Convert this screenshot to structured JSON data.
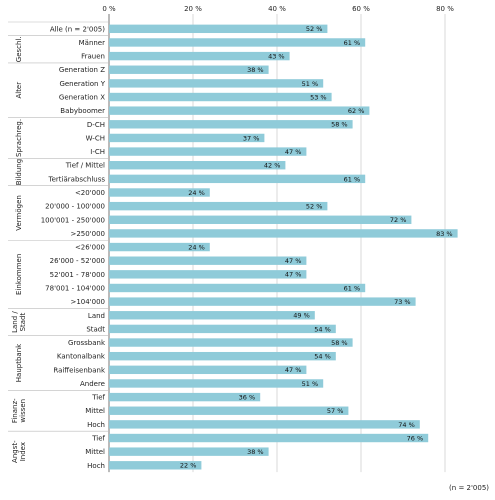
{
  "chart_data": {
    "type": "bar",
    "orientation": "horizontal",
    "xlim": [
      0,
      90
    ],
    "ticks": [
      {
        "value": 0,
        "label": "0 %"
      },
      {
        "value": 20,
        "label": "20 %"
      },
      {
        "value": 40,
        "label": "40 %"
      },
      {
        "value": 60,
        "label": "60 %"
      },
      {
        "value": 80,
        "label": "80 %"
      }
    ],
    "value_suffix": " %",
    "bar_color": "#8fcbd9",
    "grid": true,
    "rows": [
      {
        "label": "Alle  (n = 2'005)",
        "value": 52
      },
      {
        "label": "Männer",
        "value": 61
      },
      {
        "label": "Frauen",
        "value": 43
      },
      {
        "label": "Generation Z",
        "value": 38
      },
      {
        "label": "Generation Y",
        "value": 51
      },
      {
        "label": "Generation X",
        "value": 53
      },
      {
        "label": "Babyboomer",
        "value": 62
      },
      {
        "label": "D-CH",
        "value": 58
      },
      {
        "label": "W-CH",
        "value": 37
      },
      {
        "label": "I-CH",
        "value": 47
      },
      {
        "label": "Tief / Mittel",
        "value": 42
      },
      {
        "label": "Tertiärabschluss",
        "value": 61
      },
      {
        "label": "<20'000",
        "value": 24
      },
      {
        "label": "20'000 - 100'000",
        "value": 52
      },
      {
        "label": "100'001 - 250'000",
        "value": 72
      },
      {
        "label": ">250'000",
        "value": 83
      },
      {
        "label": "<26'000",
        "value": 24
      },
      {
        "label": "26'000 - 52'000",
        "value": 47
      },
      {
        "label": "52'001 - 78'000",
        "value": 47
      },
      {
        "label": "78'001 - 104'000",
        "value": 61
      },
      {
        "label": ">104'000",
        "value": 73
      },
      {
        "label": "Land",
        "value": 49
      },
      {
        "label": "Stadt",
        "value": 54
      },
      {
        "label": "Grossbank",
        "value": 58
      },
      {
        "label": "Kantonalbank",
        "value": 54
      },
      {
        "label": "Raiffeisenbank",
        "value": 47
      },
      {
        "label": "Andere",
        "value": 51
      },
      {
        "label": "Tief",
        "value": 36
      },
      {
        "label": "Mittel",
        "value": 57
      },
      {
        "label": "Hoch",
        "value": 74
      },
      {
        "label": "Tief",
        "value": 76
      },
      {
        "label": "Mittel",
        "value": 38
      },
      {
        "label": "Hoch",
        "value": 22
      }
    ],
    "groups": [
      {
        "label": [
          "Geschl."
        ],
        "start": 1,
        "end": 2
      },
      {
        "label": [
          "Alter"
        ],
        "start": 3,
        "end": 6
      },
      {
        "label": [
          "Sprachreg."
        ],
        "start": 7,
        "end": 9
      },
      {
        "label": [
          "Bildung"
        ],
        "start": 10,
        "end": 11
      },
      {
        "label": [
          "Vermögen"
        ],
        "start": 12,
        "end": 15
      },
      {
        "label": [
          "Einkommen"
        ],
        "start": 16,
        "end": 20
      },
      {
        "label": [
          "Land /",
          "Stadt"
        ],
        "start": 21,
        "end": 22
      },
      {
        "label": [
          "Hauptbank"
        ],
        "start": 23,
        "end": 26
      },
      {
        "label": [
          "Finanz-",
          "wissen"
        ],
        "start": 27,
        "end": 29
      },
      {
        "label": [
          "Angst-",
          "Index"
        ],
        "start": 30,
        "end": 32
      }
    ],
    "note": "(n = 2'005)"
  }
}
